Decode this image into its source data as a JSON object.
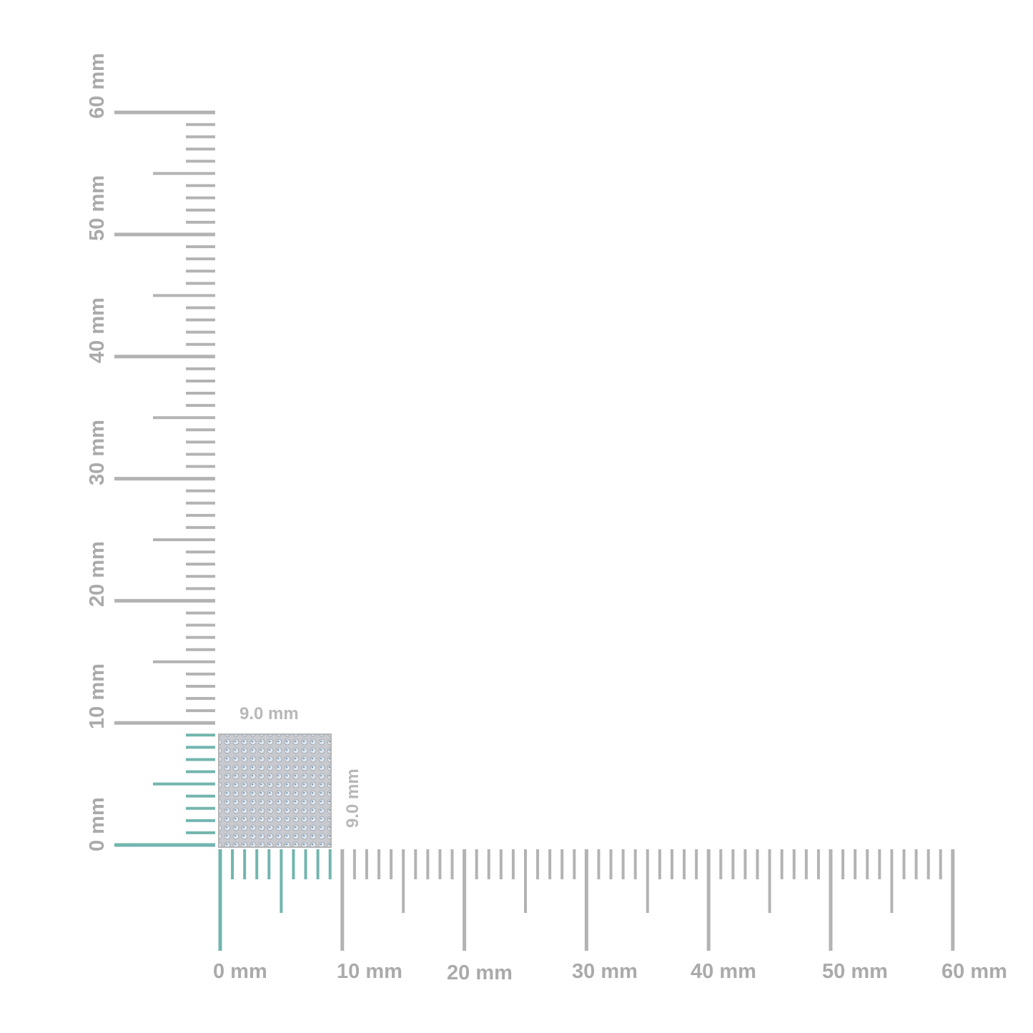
{
  "ruler": {
    "unit": "mm",
    "min": 0,
    "max": 60,
    "minor_step": 1,
    "half_step": 5,
    "major_step": 10,
    "horizontal_labels": [
      "0 mm",
      "10 mm",
      "20 mm",
      "30 mm",
      "40 mm",
      "50 mm",
      "60 mm"
    ],
    "vertical_labels": [
      "0 mm",
      "10 mm",
      "20 mm",
      "30 mm",
      "40 mm",
      "50 mm",
      "60 mm"
    ]
  },
  "item": {
    "width_mm": 9.0,
    "height_mm": 9.0,
    "width_label": "9.0 mm",
    "height_label": "9.0 mm"
  },
  "colors": {
    "ruler": "#b3b3b3",
    "highlight": "#72b5ae",
    "label": "#aaaaaa",
    "item_fill": "#c9cdd3"
  }
}
